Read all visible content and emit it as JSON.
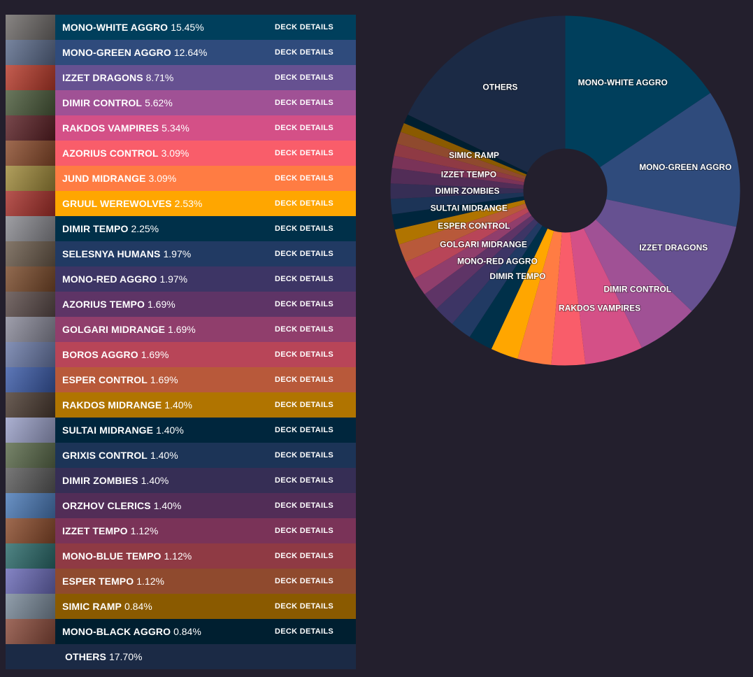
{
  "decks": [
    {
      "name": "MONO-WHITE AGGRO",
      "pct": "15.45%",
      "value": 15.45,
      "color": "#003f5c",
      "thumb": "#6e6a68",
      "details": "DECK DETAILS"
    },
    {
      "name": "MONO-GREEN AGGRO",
      "pct": "12.64%",
      "value": 12.64,
      "color": "#2f4b7c",
      "thumb": "#5a6a8a",
      "details": "DECK DETAILS"
    },
    {
      "name": "IZZET DRAGONS",
      "pct": "8.71%",
      "value": 8.71,
      "color": "#665191",
      "thumb": "#b83a2a",
      "details": "DECK DETAILS"
    },
    {
      "name": "DIMIR CONTROL",
      "pct": "5.62%",
      "value": 5.62,
      "color": "#a05195",
      "thumb": "#4a5a3a",
      "details": "DECK DETAILS"
    },
    {
      "name": "RAKDOS VAMPIRES",
      "pct": "5.34%",
      "value": 5.34,
      "color": "#d45087",
      "thumb": "#5a1f24",
      "details": "DECK DETAILS"
    },
    {
      "name": "AZORIUS CONTROL",
      "pct": "3.09%",
      "value": 3.09,
      "color": "#f95d6a",
      "thumb": "#8a4a2a",
      "details": "DECK DETAILS"
    },
    {
      "name": "JUND MIDRANGE",
      "pct": "3.09%",
      "value": 3.09,
      "color": "#ff7c43",
      "thumb": "#a08a3a",
      "details": "DECK DETAILS"
    },
    {
      "name": "GRUUL WEREWOLVES",
      "pct": "2.53%",
      "value": 2.53,
      "color": "#ffa600",
      "thumb": "#a8302a",
      "details": "DECK DETAILS"
    },
    {
      "name": "DIMIR TEMPO",
      "pct": "2.25%",
      "value": 2.25,
      "color": "#003049",
      "thumb": "#8a8a90",
      "details": "DECK DETAILS"
    },
    {
      "name": "SELESNYA HUMANS",
      "pct": "1.97%",
      "value": 1.97,
      "color": "#213a63",
      "thumb": "#6a5a4a",
      "details": "DECK DETAILS"
    },
    {
      "name": "MONO-RED AGGRO",
      "pct": "1.97%",
      "value": 1.97,
      "color": "#3d3565",
      "thumb": "#7a4a2a",
      "details": "DECK DETAILS"
    },
    {
      "name": "AZORIUS TEMPO",
      "pct": "1.69%",
      "value": 1.69,
      "color": "#5e3466",
      "thumb": "#5a4a48",
      "details": "DECK DETAILS"
    },
    {
      "name": "GOLGARI MIDRANGE",
      "pct": "1.69%",
      "value": 1.69,
      "color": "#903e6c",
      "thumb": "#8a8a9a",
      "details": "DECK DETAILS"
    },
    {
      "name": "BOROS AGGRO",
      "pct": "1.69%",
      "value": 1.69,
      "color": "#b84558",
      "thumb": "#6a7aa8",
      "details": "DECK DETAILS"
    },
    {
      "name": "ESPER CONTROL",
      "pct": "1.69%",
      "value": 1.69,
      "color": "#b8593a",
      "thumb": "#3a5aa8",
      "details": "DECK DETAILS"
    },
    {
      "name": "RAKDOS MIDRANGE",
      "pct": "1.40%",
      "value": 1.4,
      "color": "#b07400",
      "thumb": "#4a3a30",
      "details": "DECK DETAILS"
    },
    {
      "name": "SULTAI MIDRANGE",
      "pct": "1.40%",
      "value": 1.4,
      "color": "#00263d",
      "thumb": "#9aa0c8",
      "details": "DECK DETAILS"
    },
    {
      "name": "GRIXIS CONTROL",
      "pct": "1.40%",
      "value": 1.4,
      "color": "#1c3457",
      "thumb": "#5a6a4a",
      "details": "DECK DETAILS"
    },
    {
      "name": "DIMIR ZOMBIES",
      "pct": "1.40%",
      "value": 1.4,
      "color": "#362e55",
      "thumb": "#5a5a5a",
      "details": "DECK DETAILS"
    },
    {
      "name": "ORZHOV CLERICS",
      "pct": "1.40%",
      "value": 1.4,
      "color": "#522d57",
      "thumb": "#4a7ab8",
      "details": "DECK DETAILS"
    },
    {
      "name": "IZZET TEMPO",
      "pct": "1.12%",
      "value": 1.12,
      "color": "#7a3358",
      "thumb": "#8a4a2a",
      "details": "DECK DETAILS"
    },
    {
      "name": "MONO-BLUE TEMPO",
      "pct": "1.12%",
      "value": 1.12,
      "color": "#8f3a44",
      "thumb": "#2a6a6a",
      "details": "DECK DETAILS"
    },
    {
      "name": "ESPER TEMPO",
      "pct": "1.12%",
      "value": 1.12,
      "color": "#8f4a2e",
      "thumb": "#6a6ab8",
      "details": "DECK DETAILS"
    },
    {
      "name": "SIMIC RAMP",
      "pct": "0.84%",
      "value": 0.84,
      "color": "#8a5a00",
      "thumb": "#7a8a9a",
      "details": "DECK DETAILS"
    },
    {
      "name": "MONO-BLACK AGGRO",
      "pct": "0.84%",
      "value": 0.84,
      "color": "#001f30",
      "thumb": "#8a4a3a",
      "details": "DECK DETAILS"
    }
  ],
  "others": {
    "name": "OTHERS",
    "pct": "17.70%",
    "value": 17.7,
    "color": "#1b2a45"
  },
  "chart_data": {
    "type": "pie",
    "inner_hole": "donut",
    "labels": [
      "MONO-WHITE AGGRO",
      "MONO-GREEN AGGRO",
      "IZZET DRAGONS",
      "DIMIR CONTROL",
      "RAKDOS VAMPIRES",
      "DIMIR TEMPO",
      "MONO-RED AGGRO",
      "GOLGARI MIDRANGE",
      "ESPER CONTROL",
      "SULTAI MIDRANGE",
      "DIMIR ZOMBIES",
      "IZZET TEMPO",
      "SIMIC RAMP",
      "OTHERS"
    ]
  }
}
